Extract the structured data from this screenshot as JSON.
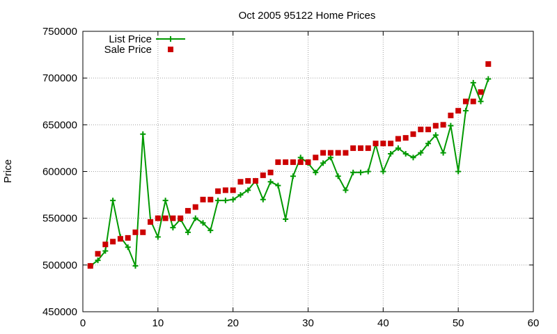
{
  "chart_data": {
    "type": "line",
    "title": "Oct 2005 95122 Home Prices",
    "xlabel": "",
    "ylabel": "Price",
    "xlim": [
      0,
      60
    ],
    "ylim": [
      450000,
      750000
    ],
    "xticks": [
      0,
      10,
      20,
      30,
      40,
      50,
      60
    ],
    "yticks": [
      450000,
      500000,
      550000,
      600000,
      650000,
      700000,
      750000
    ],
    "xtick_labels": [
      "0",
      "10",
      "20",
      "30",
      "40",
      "50",
      "60"
    ],
    "ytick_labels": [
      "450000",
      "500000",
      "550000",
      "600000",
      "650000",
      "700000",
      "750000"
    ],
    "grid": true,
    "legend_position": "top-left",
    "series": [
      {
        "name": "List Price",
        "style": "line+cross",
        "color": "#009900",
        "x": [
          1,
          2,
          3,
          4,
          5,
          6,
          7,
          8,
          9,
          10,
          11,
          12,
          13,
          14,
          15,
          16,
          17,
          18,
          19,
          20,
          21,
          22,
          23,
          24,
          25,
          26,
          27,
          28,
          29,
          30,
          31,
          32,
          33,
          34,
          35,
          36,
          37,
          38,
          39,
          40,
          41,
          42,
          43,
          44,
          45,
          46,
          47,
          48,
          49,
          50,
          51,
          52,
          53,
          54
        ],
        "values": [
          499000,
          505000,
          515000,
          569000,
          530000,
          519000,
          499000,
          640000,
          548000,
          530000,
          569000,
          540000,
          549000,
          535000,
          550000,
          545000,
          537000,
          569000,
          569000,
          570000,
          575000,
          580000,
          590000,
          570000,
          589000,
          585000,
          549000,
          595000,
          615000,
          609000,
          599000,
          609000,
          615000,
          595000,
          580000,
          599000,
          599000,
          600000,
          629000,
          600000,
          619000,
          625000,
          619000,
          615000,
          620000,
          630000,
          639000,
          620000,
          649000,
          600000,
          665000,
          695000,
          675000,
          699000
        ]
      },
      {
        "name": "Sale Price",
        "style": "square",
        "color": "#cc0000",
        "x": [
          1,
          2,
          3,
          4,
          5,
          6,
          7,
          8,
          9,
          10,
          11,
          12,
          13,
          14,
          15,
          16,
          17,
          18,
          19,
          20,
          21,
          22,
          23,
          24,
          25,
          26,
          27,
          28,
          29,
          30,
          31,
          32,
          33,
          34,
          35,
          36,
          37,
          38,
          39,
          40,
          41,
          42,
          43,
          44,
          45,
          46,
          47,
          48,
          49,
          50,
          51,
          52,
          53,
          54
        ],
        "values": [
          499000,
          512000,
          522000,
          525000,
          528000,
          529000,
          535000,
          535000,
          546000,
          550000,
          550000,
          550000,
          550000,
          558000,
          562000,
          570000,
          570000,
          579000,
          580000,
          580000,
          589000,
          590000,
          590000,
          596000,
          599000,
          610000,
          610000,
          610000,
          610000,
          610000,
          615000,
          620000,
          620000,
          620000,
          620000,
          625000,
          625000,
          625000,
          630000,
          630000,
          630000,
          635000,
          636000,
          640000,
          645000,
          645000,
          649000,
          650000,
          660000,
          665000,
          675000,
          675000,
          685000,
          715000
        ]
      }
    ]
  }
}
